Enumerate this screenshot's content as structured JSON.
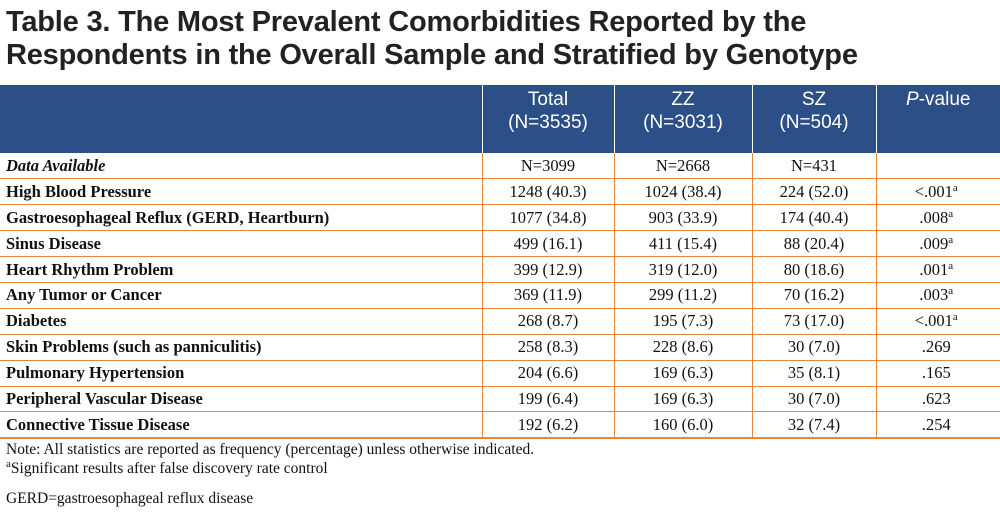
{
  "title": {
    "line1": "Table 3. The Most Prevalent Comorbidities Reported by the",
    "line2": "Respondents in the Overall Sample and Stratified by Genotype"
  },
  "header": {
    "columns": [
      {
        "top": "Total",
        "bottom": "(N=3535)"
      },
      {
        "top": "ZZ",
        "bottom": "(N=3031)"
      },
      {
        "top": "SZ",
        "bottom": "(N=504)"
      }
    ],
    "pvalue_italic": "P",
    "pvalue_rest": "-value"
  },
  "available": {
    "label": "Data Available",
    "total": "N=3099",
    "zz": "N=2668",
    "sz": "N=431",
    "p": ""
  },
  "rows": [
    {
      "label": "High Blood Pressure",
      "total": "1248 (40.3)",
      "zz": "1024 (38.4)",
      "sz": "224 (52.0)",
      "p": "<.001",
      "sig": "a"
    },
    {
      "label": "Gastroesophageal Reflux (GERD, Heartburn)",
      "total": "1077 (34.8)",
      "zz": "903 (33.9)",
      "sz": "174 (40.4)",
      "p": ".008",
      "sig": "a"
    },
    {
      "label": "Sinus Disease",
      "total": "499 (16.1)",
      "zz": "411 (15.4)",
      "sz": "88 (20.4)",
      "p": ".009",
      "sig": "a"
    },
    {
      "label": "Heart Rhythm Problem",
      "total": "399 (12.9)",
      "zz": "319 (12.0)",
      "sz": "80 (18.6)",
      "p": ".001",
      "sig": "a"
    },
    {
      "label": "Any Tumor or Cancer",
      "total": "369 (11.9)",
      "zz": "299 (11.2)",
      "sz": "70 (16.2)",
      "p": ".003",
      "sig": "a"
    },
    {
      "label": "Diabetes",
      "total": "268 (8.7)",
      "zz": "195 (7.3)",
      "sz": "73 (17.0)",
      "p": "<.001",
      "sig": "a"
    },
    {
      "label": "Skin Problems (such as panniculitis)",
      "total": "258 (8.3)",
      "zz": "228 (8.6)",
      "sz": "30 (7.0)",
      "p": ".269",
      "sig": ""
    },
    {
      "label": "Pulmonary Hypertension",
      "total": "204 (6.6)",
      "zz": "169 (6.3)",
      "sz": "35 (8.1)",
      "p": ".165",
      "sig": ""
    },
    {
      "label": "Peripheral Vascular Disease",
      "total": "199 (6.4)",
      "zz": "169 (6.3)",
      "sz": "30 (7.0)",
      "p": ".623",
      "sig": ""
    },
    {
      "label": "Connective Tissue Disease",
      "total": "192 (6.2)",
      "zz": "160 (6.0)",
      "sz": "32 (7.4)",
      "p": ".254",
      "sig": ""
    }
  ],
  "notes": {
    "line1": "Note: All statistics are reported as frequency (percentage) unless otherwise indicated.",
    "line2_sup": "a",
    "line2": "Significant results after false discovery rate control",
    "gerd": "GERD=gastroesophageal reflux disease"
  },
  "colors": {
    "header_bg": "#2c4f88",
    "rule": "#e8873a"
  }
}
